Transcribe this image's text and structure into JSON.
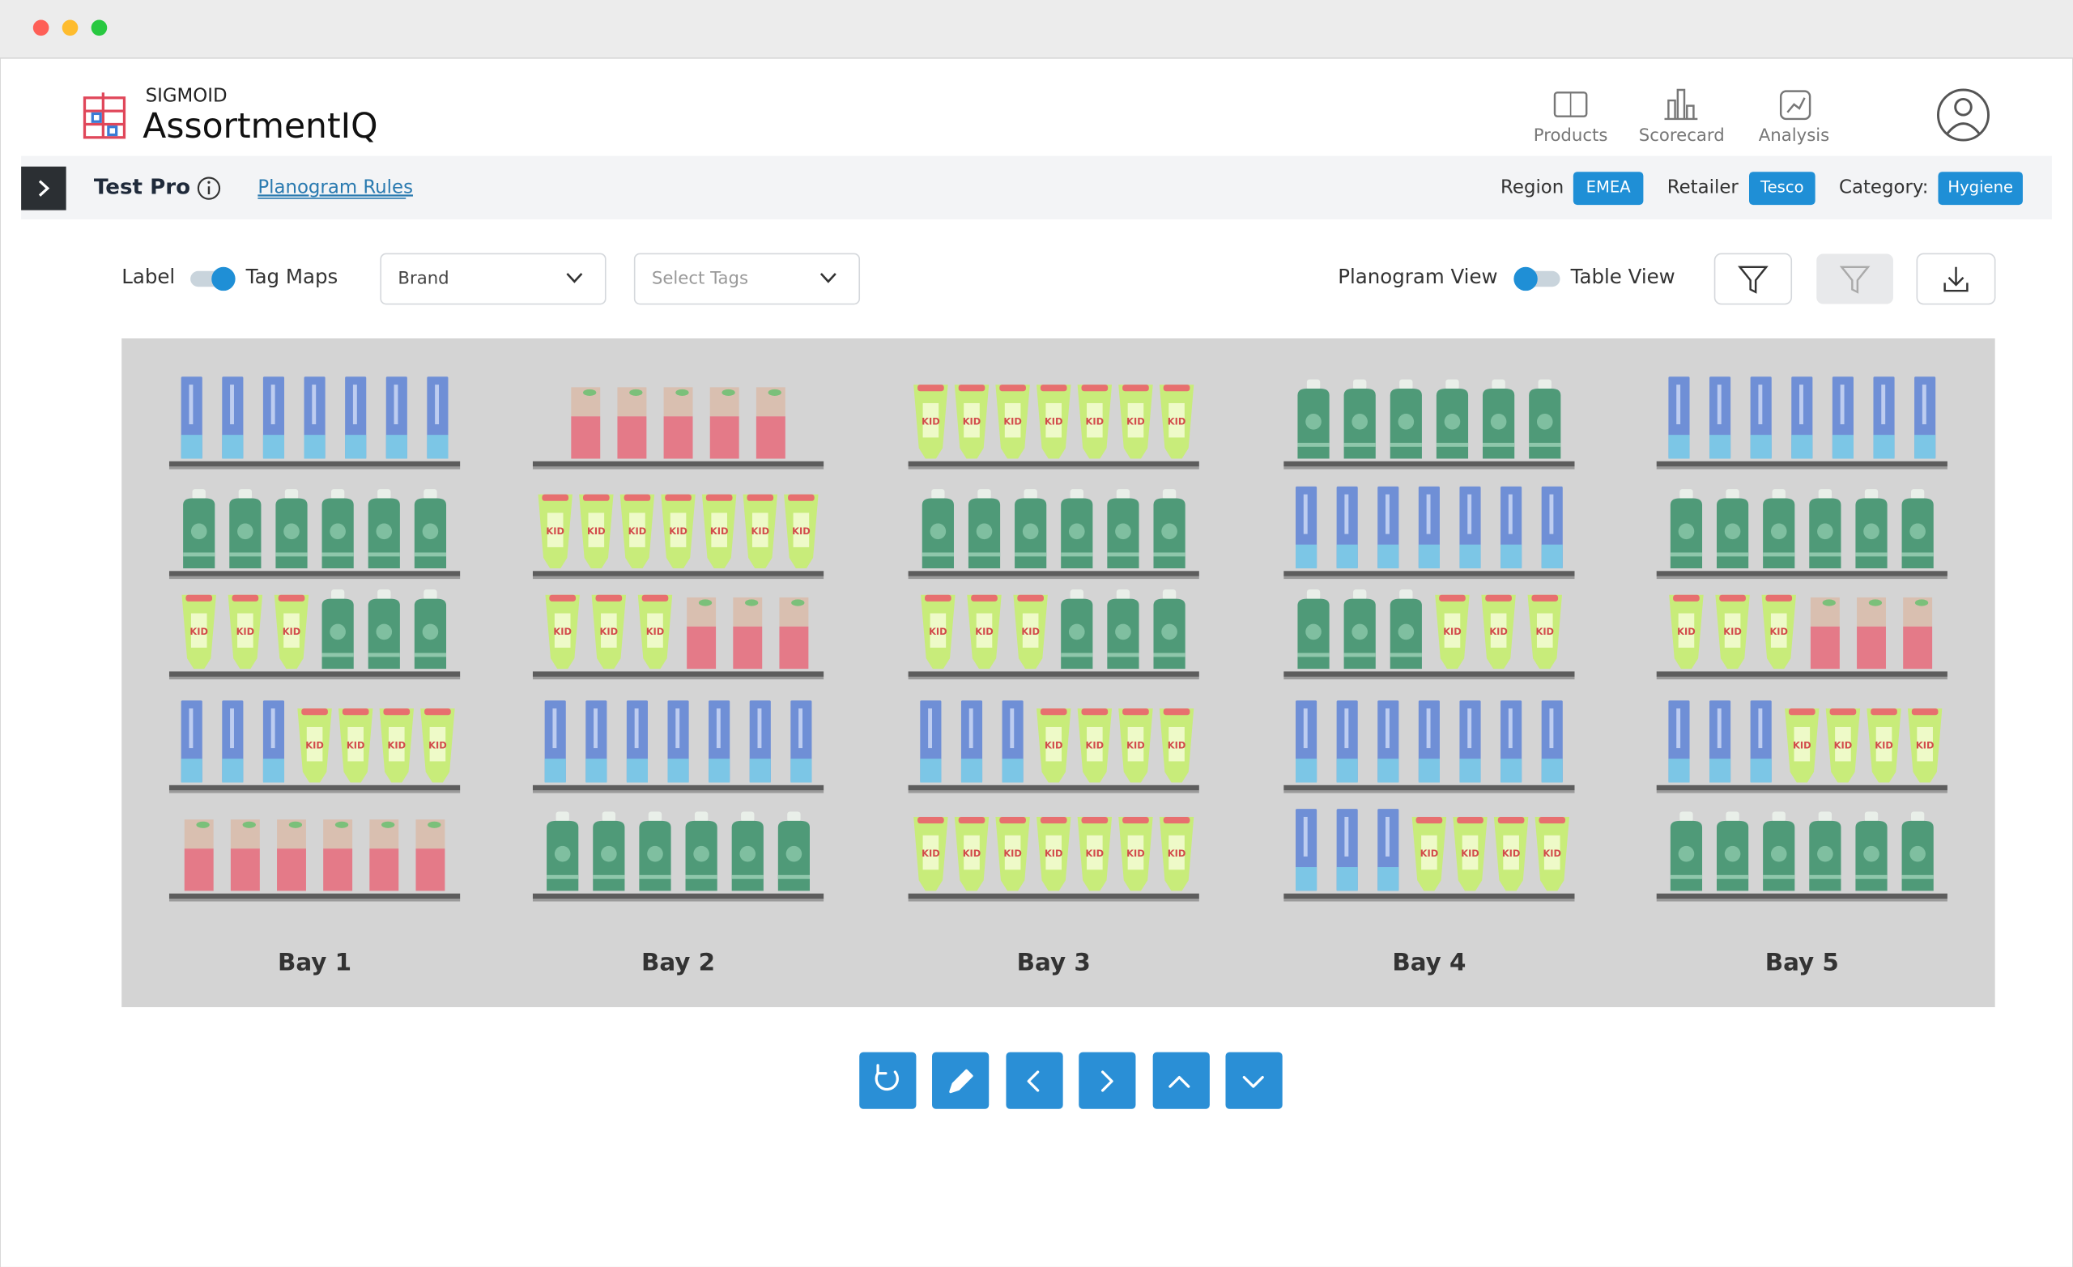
{
  "window": {
    "brand": "SIGMOID",
    "app_name": "AssortmentIQ",
    "nav": [
      "Products",
      "Scorecard",
      "Analysis"
    ]
  },
  "toolbar": {
    "title": "Test Pro",
    "link": "Planogram Rules",
    "filters": [
      {
        "label": "Region",
        "value": "EMEA"
      },
      {
        "label": "Retailer",
        "value": "Tesco"
      },
      {
        "label": "Category:",
        "value": "Hygiene"
      }
    ]
  },
  "controls": {
    "label_toggle": "Label",
    "tag_toggle": "Tag Maps",
    "brand_dropdown": "Brand",
    "tags_dropdown": "Select Tags",
    "planogram_view": "Planogram View",
    "table_view": "Table View"
  },
  "planogram": {
    "bays": [
      "Bay 1",
      "Bay 2",
      "Bay 3",
      "Bay 4",
      "Bay 5"
    ]
  }
}
